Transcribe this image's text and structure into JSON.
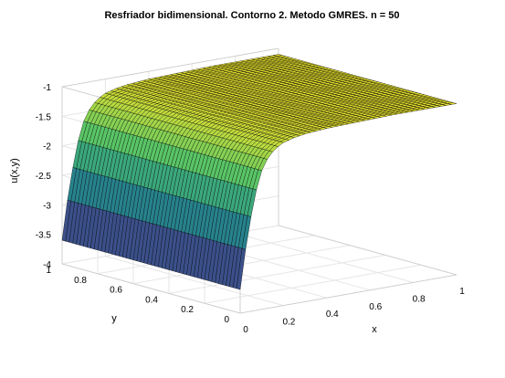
{
  "chart_data": {
    "type": "surface",
    "title": "Resfriador bidimensional. Contorno 2. Metodo GMRES. n = 50",
    "xlabel": "x",
    "ylabel": "y",
    "zlabel": "u(x,y)",
    "xlim": [
      0,
      1
    ],
    "ylim": [
      0,
      1
    ],
    "zlim": [
      -4,
      -1
    ],
    "xticks": [
      "0",
      "0.2",
      "0.4",
      "0.6",
      "0.8",
      "1"
    ],
    "yticks": [
      "0",
      "0.2",
      "0.4",
      "0.6",
      "0.8",
      "1"
    ],
    "zticks": [
      "-4",
      "-3.5",
      "-3",
      "-2.5",
      "-2",
      "-1.5",
      "-1"
    ],
    "grid": true,
    "colormap": [
      "#440154",
      "#3b528b",
      "#21908d",
      "#5dc963",
      "#fde725"
    ],
    "surface_profile": {
      "description_axis": "x",
      "x": [
        0,
        0.02,
        0.04,
        0.06,
        0.08,
        0.1,
        0.12,
        0.14,
        0.16,
        0.18,
        0.2,
        0.25,
        0.3,
        0.4,
        0.5,
        0.6,
        0.7,
        0.8,
        0.9,
        1.0
      ],
      "u": [
        -3.6,
        -3.05,
        -2.6,
        -2.2,
        -1.88,
        -1.65,
        -1.5,
        -1.4,
        -1.33,
        -1.28,
        -1.24,
        -1.19,
        -1.16,
        -1.13,
        -1.12,
        -1.11,
        -1.1,
        -1.1,
        -1.1,
        -1.1
      ],
      "constant_along": "y"
    },
    "grid_size": 50
  }
}
